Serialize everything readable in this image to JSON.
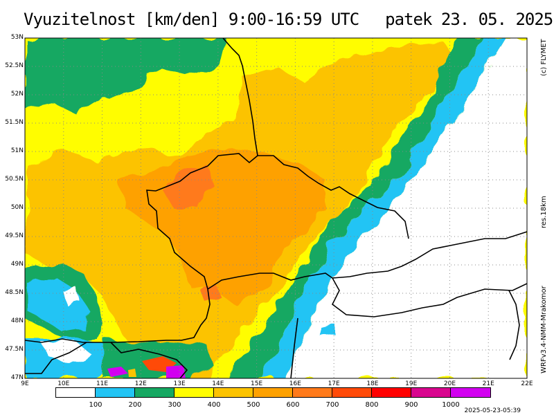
{
  "title": {
    "main": "Vyuzitelnost [km/den] 9:00-16:59 UTC",
    "date": "patek 23. 05. 2025"
  },
  "credits": {
    "copyright": "(c) FLYMET",
    "resolution": "res.18km",
    "model": "WRFv3.4-NMM-Mrakomor"
  },
  "axes": {
    "lat_labels": [
      "53N",
      "52.5N",
      "52N",
      "51.5N",
      "51N",
      "50.5N",
      "50N",
      "49.5N",
      "49N",
      "48.5N",
      "48N",
      "47.5N",
      "47N"
    ],
    "lon_labels": [
      "9E",
      "10E",
      "11E",
      "12E",
      "13E",
      "14E",
      "15E",
      "16E",
      "17E",
      "18E",
      "19E",
      "20E",
      "21E",
      "22E"
    ]
  },
  "legend": {
    "colors": [
      "#ffffff",
      "#22c4f4",
      "#16a862",
      "#fffd00",
      "#fcc300",
      "#fea100",
      "#ff7a1a",
      "#ff4a08",
      "#ff0000",
      "#d9068f",
      "#d200f0"
    ],
    "labels": [
      "100",
      "200",
      "300",
      "400",
      "500",
      "600",
      "700",
      "800",
      "900",
      "1000"
    ]
  },
  "timestamp": "2025-05-23-05:39"
}
